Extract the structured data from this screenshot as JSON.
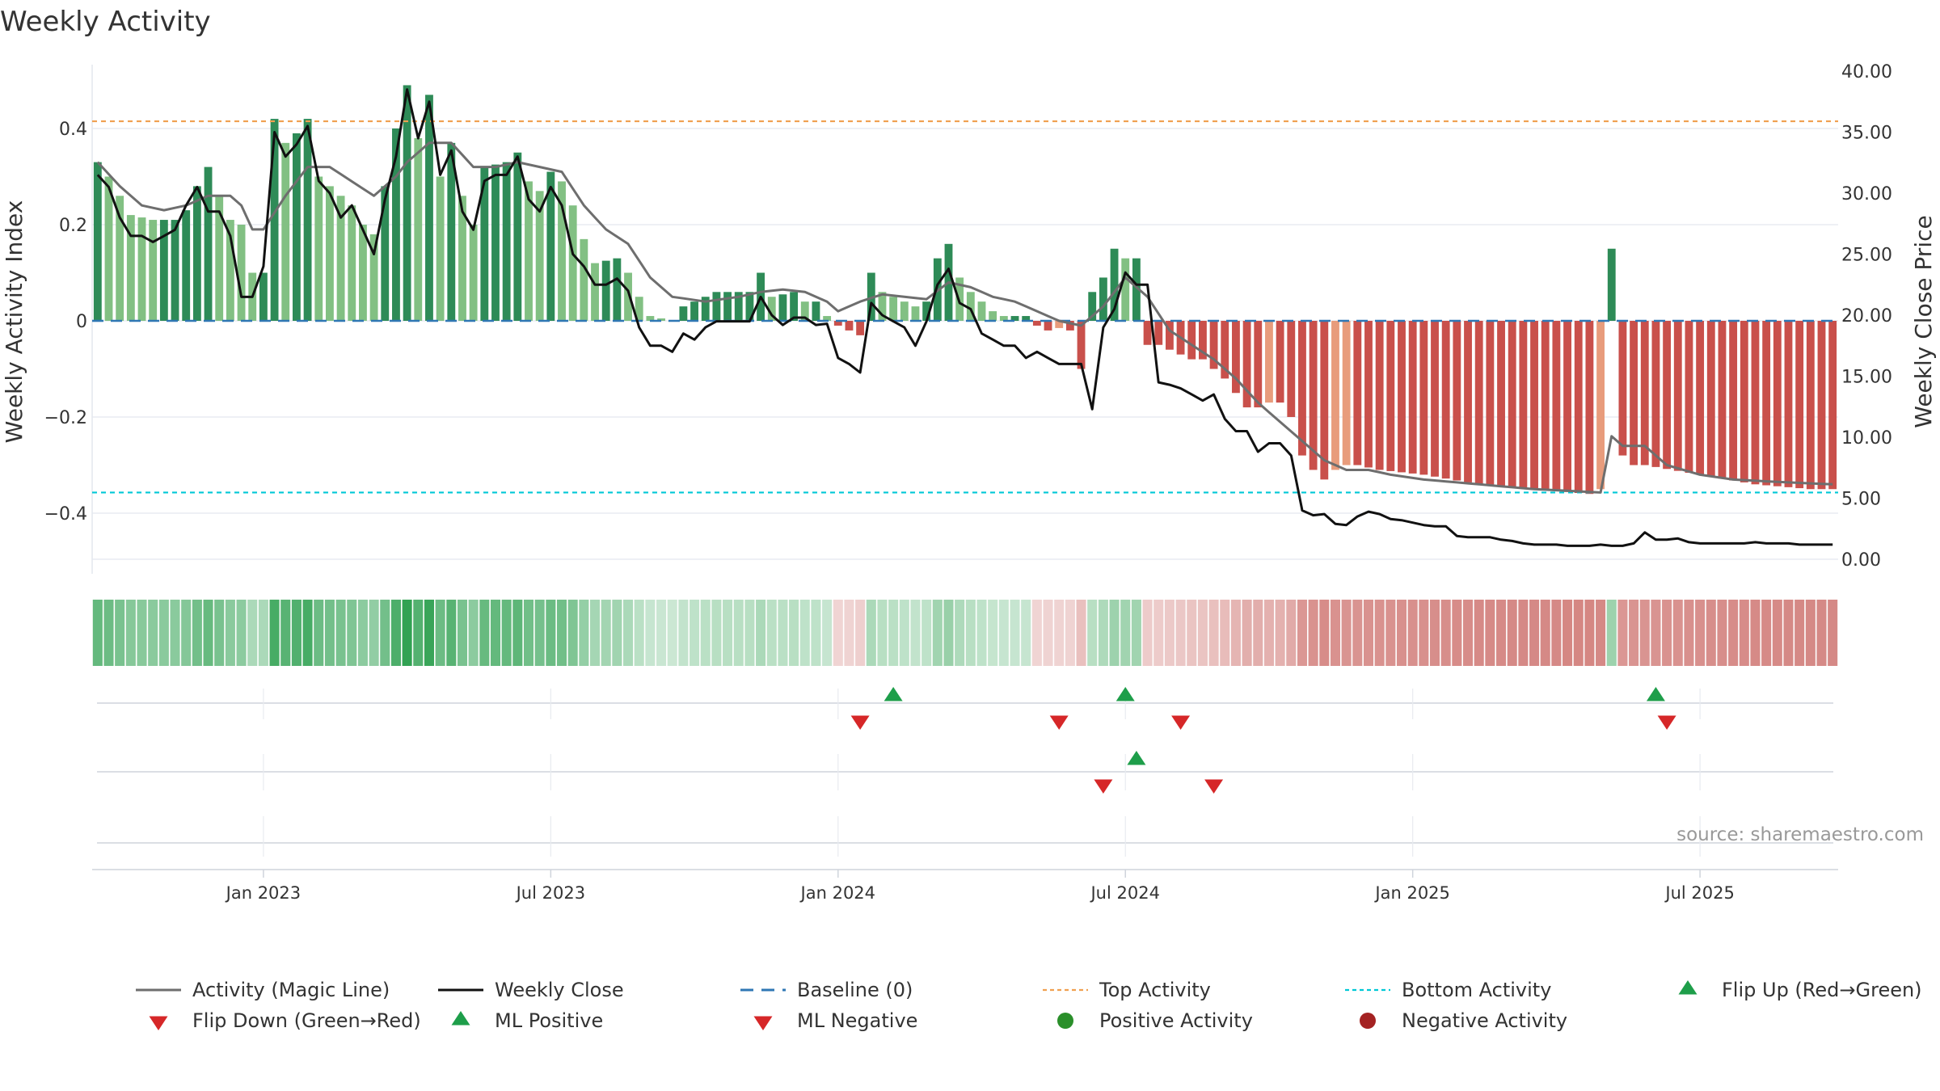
{
  "title": "Weekly Activity",
  "source": "source: sharemaestro.com",
  "colors": {
    "pos_dark": "#2e8b57",
    "pos_light": "#82c083",
    "neg_dark": "#c9504b",
    "neg_light": "#e89c7c",
    "magic_line": "#6e6e6e",
    "close_line": "#111111",
    "baseline": "#2f77b4",
    "top": "#f0a050",
    "bottom": "#00c8d6",
    "flip_up": "#1e9e4a",
    "flip_down": "#d62728",
    "pos_dot": "#2a8f2a",
    "neg_dot": "#a42222"
  },
  "chart_data": {
    "type": "bar+line",
    "title": "Weekly Activity",
    "ylabel_left": "Weekly Activity Index",
    "ylabel_right": "Weekly Close Price",
    "ylim_left": [
      -0.5,
      0.54
    ],
    "ylim_right": [
      0,
      40
    ],
    "yticks_left": [
      {
        "v": 0.4,
        "label": "0.4"
      },
      {
        "v": 0.2,
        "label": "0.2"
      },
      {
        "v": 0,
        "label": "0"
      },
      {
        "v": -0.2,
        "label": "−0.2"
      },
      {
        "v": -0.4,
        "label": "−0.4"
      }
    ],
    "yticks_right": [
      {
        "v": 40,
        "label": "40.00"
      },
      {
        "v": 35,
        "label": "35.00"
      },
      {
        "v": 30,
        "label": "30.00"
      },
      {
        "v": 25,
        "label": "25.00"
      },
      {
        "v": 20,
        "label": "20.00"
      },
      {
        "v": 15,
        "label": "15.00"
      },
      {
        "v": 10,
        "label": "10.00"
      },
      {
        "v": 5,
        "label": "5.00"
      },
      {
        "v": 0,
        "label": "0.00"
      }
    ],
    "x_start": "2022-10-24",
    "week_count": 158,
    "x_ticks": [
      {
        "week": 15,
        "label": "Jan 2023"
      },
      {
        "week": 41,
        "label": "Jul 2023"
      },
      {
        "week": 67,
        "label": "Jan 2024"
      },
      {
        "week": 93,
        "label": "Jul 2024"
      },
      {
        "week": 119,
        "label": "Jan 2025"
      },
      {
        "week": 145,
        "label": "Jul 2025"
      }
    ],
    "top_activity": 0.415,
    "bottom_activity": -0.357,
    "baseline": 0,
    "activity_anchors": [
      [
        0,
        0.33
      ],
      [
        1,
        0.3
      ],
      [
        2,
        0.26
      ],
      [
        3,
        0.22
      ],
      [
        5,
        0.21
      ],
      [
        7,
        0.21
      ],
      [
        8,
        0.23
      ],
      [
        9,
        0.28
      ],
      [
        10,
        0.32
      ],
      [
        11,
        0.26
      ],
      [
        12,
        0.21
      ],
      [
        13,
        0.2
      ],
      [
        14,
        0.1
      ],
      [
        15,
        0.1
      ],
      [
        16,
        0.42
      ],
      [
        17,
        0.37
      ],
      [
        18,
        0.39
      ],
      [
        19,
        0.42
      ],
      [
        20,
        0.3
      ],
      [
        21,
        0.28
      ],
      [
        22,
        0.26
      ],
      [
        23,
        0.24
      ],
      [
        24,
        0.2
      ],
      [
        25,
        0.18
      ],
      [
        26,
        0.28
      ],
      [
        27,
        0.4
      ],
      [
        28,
        0.49
      ],
      [
        29,
        0.38
      ],
      [
        30,
        0.47
      ],
      [
        31,
        0.3
      ],
      [
        32,
        0.37
      ],
      [
        33,
        0.26
      ],
      [
        34,
        0.2
      ],
      [
        35,
        0.32
      ],
      [
        37,
        0.33
      ],
      [
        38,
        0.35
      ],
      [
        39,
        0.29
      ],
      [
        40,
        0.27
      ],
      [
        41,
        0.31
      ],
      [
        42,
        0.29
      ],
      [
        43,
        0.24
      ],
      [
        44,
        0.17
      ],
      [
        45,
        0.12
      ],
      [
        47,
        0.13
      ],
      [
        48,
        0.1
      ],
      [
        49,
        0.05
      ],
      [
        50,
        0.01
      ],
      [
        52,
        0.0
      ],
      [
        53,
        0.03
      ],
      [
        55,
        0.05
      ],
      [
        56,
        0.06
      ],
      [
        59,
        0.06
      ],
      [
        60,
        0.1
      ],
      [
        61,
        0.05
      ],
      [
        63,
        0.06
      ],
      [
        64,
        0.04
      ],
      [
        65,
        0.04
      ],
      [
        66,
        0.01
      ],
      [
        67,
        -0.01
      ],
      [
        68,
        -0.02
      ],
      [
        69,
        -0.03
      ],
      [
        70,
        0.1
      ],
      [
        71,
        0.06
      ],
      [
        72,
        0.05
      ],
      [
        73,
        0.04
      ],
      [
        74,
        0.03
      ],
      [
        75,
        0.04
      ],
      [
        76,
        0.13
      ],
      [
        77,
        0.16
      ],
      [
        78,
        0.09
      ],
      [
        79,
        0.06
      ],
      [
        80,
        0.04
      ],
      [
        81,
        0.02
      ],
      [
        82,
        0.01
      ],
      [
        84,
        0.01
      ],
      [
        85,
        -0.01
      ],
      [
        86,
        -0.02
      ],
      [
        87,
        -0.015
      ],
      [
        88,
        -0.02
      ],
      [
        89,
        -0.1
      ],
      [
        90,
        0.06
      ],
      [
        91,
        0.09
      ],
      [
        92,
        0.15
      ],
      [
        93,
        0.13
      ],
      [
        94,
        0.13
      ],
      [
        95,
        -0.05
      ],
      [
        96,
        -0.05
      ],
      [
        97,
        -0.06
      ],
      [
        98,
        -0.07
      ],
      [
        99,
        -0.08
      ],
      [
        100,
        -0.08
      ],
      [
        101,
        -0.1
      ],
      [
        102,
        -0.12
      ],
      [
        103,
        -0.15
      ],
      [
        104,
        -0.18
      ],
      [
        105,
        -0.18
      ],
      [
        106,
        -0.17
      ],
      [
        107,
        -0.17
      ],
      [
        108,
        -0.2
      ],
      [
        109,
        -0.28
      ],
      [
        110,
        -0.31
      ],
      [
        111,
        -0.33
      ],
      [
        112,
        -0.31
      ],
      [
        113,
        -0.3
      ],
      [
        114,
        -0.3
      ],
      [
        116,
        -0.31
      ],
      [
        120,
        -0.32
      ],
      [
        125,
        -0.34
      ],
      [
        130,
        -0.35
      ],
      [
        135,
        -0.36
      ],
      [
        136,
        -0.35
      ],
      [
        137,
        0.15
      ],
      [
        138,
        -0.28
      ],
      [
        139,
        -0.3
      ],
      [
        140,
        -0.3
      ],
      [
        145,
        -0.32
      ],
      [
        150,
        -0.34
      ],
      [
        155,
        -0.35
      ],
      [
        157,
        -0.35
      ]
    ],
    "magic_anchors": [
      [
        0,
        0.33
      ],
      [
        2,
        0.28
      ],
      [
        4,
        0.24
      ],
      [
        6,
        0.23
      ],
      [
        8,
        0.24
      ],
      [
        10,
        0.26
      ],
      [
        12,
        0.26
      ],
      [
        13,
        0.24
      ],
      [
        14,
        0.19
      ],
      [
        15,
        0.19
      ],
      [
        17,
        0.26
      ],
      [
        19,
        0.32
      ],
      [
        21,
        0.32
      ],
      [
        23,
        0.29
      ],
      [
        25,
        0.26
      ],
      [
        27,
        0.3
      ],
      [
        28,
        0.33
      ],
      [
        30,
        0.37
      ],
      [
        32,
        0.37
      ],
      [
        34,
        0.32
      ],
      [
        36,
        0.32
      ],
      [
        38,
        0.33
      ],
      [
        40,
        0.32
      ],
      [
        42,
        0.31
      ],
      [
        44,
        0.24
      ],
      [
        46,
        0.19
      ],
      [
        48,
        0.16
      ],
      [
        50,
        0.09
      ],
      [
        52,
        0.05
      ],
      [
        55,
        0.04
      ],
      [
        58,
        0.05
      ],
      [
        60,
        0.06
      ],
      [
        62,
        0.065
      ],
      [
        64,
        0.06
      ],
      [
        66,
        0.04
      ],
      [
        67,
        0.02
      ],
      [
        69,
        0.04
      ],
      [
        71,
        0.055
      ],
      [
        73,
        0.05
      ],
      [
        75,
        0.045
      ],
      [
        77,
        0.08
      ],
      [
        79,
        0.07
      ],
      [
        81,
        0.05
      ],
      [
        83,
        0.04
      ],
      [
        85,
        0.02
      ],
      [
        87,
        0.0
      ],
      [
        89,
        -0.01
      ],
      [
        91,
        0.03
      ],
      [
        93,
        0.09
      ],
      [
        95,
        0.05
      ],
      [
        97,
        -0.02
      ],
      [
        99,
        -0.05
      ],
      [
        101,
        -0.08
      ],
      [
        103,
        -0.12
      ],
      [
        105,
        -0.17
      ],
      [
        107,
        -0.21
      ],
      [
        109,
        -0.25
      ],
      [
        111,
        -0.29
      ],
      [
        113,
        -0.31
      ],
      [
        115,
        -0.31
      ],
      [
        117,
        -0.32
      ],
      [
        120,
        -0.33
      ],
      [
        125,
        -0.34
      ],
      [
        130,
        -0.35
      ],
      [
        136,
        -0.357
      ],
      [
        137,
        -0.24
      ],
      [
        138,
        -0.26
      ],
      [
        140,
        -0.26
      ],
      [
        142,
        -0.3
      ],
      [
        145,
        -0.32
      ],
      [
        148,
        -0.33
      ],
      [
        152,
        -0.335
      ],
      [
        157,
        -0.34
      ]
    ],
    "close_anchors": [
      [
        0,
        31.5
      ],
      [
        1,
        30.5
      ],
      [
        2,
        28.0
      ],
      [
        3,
        26.5
      ],
      [
        4,
        26.5
      ],
      [
        5,
        26.0
      ],
      [
        6,
        26.5
      ],
      [
        7,
        27.0
      ],
      [
        8,
        29.0
      ],
      [
        9,
        30.5
      ],
      [
        10,
        28.5
      ],
      [
        11,
        28.5
      ],
      [
        12,
        26.5
      ],
      [
        13,
        21.5
      ],
      [
        14,
        21.5
      ],
      [
        15,
        24.0
      ],
      [
        16,
        35.0
      ],
      [
        17,
        33.0
      ],
      [
        18,
        34.0
      ],
      [
        19,
        35.5
      ],
      [
        20,
        31.0
      ],
      [
        21,
        30.0
      ],
      [
        22,
        28.0
      ],
      [
        23,
        29.0
      ],
      [
        24,
        27.0
      ],
      [
        25,
        25.0
      ],
      [
        26,
        29.5
      ],
      [
        27,
        33.0
      ],
      [
        28,
        38.5
      ],
      [
        29,
        34.5
      ],
      [
        30,
        37.5
      ],
      [
        31,
        31.5
      ],
      [
        32,
        33.5
      ],
      [
        33,
        28.5
      ],
      [
        34,
        27.0
      ],
      [
        35,
        31.0
      ],
      [
        36,
        31.5
      ],
      [
        37,
        31.5
      ],
      [
        38,
        33.0
      ],
      [
        39,
        29.5
      ],
      [
        40,
        28.5
      ],
      [
        41,
        30.5
      ],
      [
        42,
        29.0
      ],
      [
        43,
        25.0
      ],
      [
        44,
        24.0
      ],
      [
        45,
        22.5
      ],
      [
        46,
        22.5
      ],
      [
        47,
        23.0
      ],
      [
        48,
        22.0
      ],
      [
        49,
        19.0
      ],
      [
        50,
        17.5
      ],
      [
        51,
        17.5
      ],
      [
        52,
        17.0
      ],
      [
        53,
        18.5
      ],
      [
        54,
        18.0
      ],
      [
        55,
        19.0
      ],
      [
        56,
        19.5
      ],
      [
        57,
        19.5
      ],
      [
        58,
        19.5
      ],
      [
        59,
        19.5
      ],
      [
        60,
        21.5
      ],
      [
        61,
        20.0
      ],
      [
        62,
        19.2
      ],
      [
        63,
        19.8
      ],
      [
        64,
        19.8
      ],
      [
        65,
        19.2
      ],
      [
        66,
        19.3
      ],
      [
        67,
        16.5
      ],
      [
        68,
        16.0
      ],
      [
        69,
        15.3
      ],
      [
        70,
        21.0
      ],
      [
        71,
        20.0
      ],
      [
        72,
        19.5
      ],
      [
        73,
        19.0
      ],
      [
        74,
        17.5
      ],
      [
        75,
        19.5
      ],
      [
        76,
        22.5
      ],
      [
        77,
        23.8
      ],
      [
        78,
        21.0
      ],
      [
        79,
        20.5
      ],
      [
        80,
        18.5
      ],
      [
        81,
        18.0
      ],
      [
        82,
        17.5
      ],
      [
        83,
        17.5
      ],
      [
        84,
        16.5
      ],
      [
        85,
        17.0
      ],
      [
        86,
        16.5
      ],
      [
        87,
        16.0
      ],
      [
        88,
        16.0
      ],
      [
        89,
        16.0
      ],
      [
        90,
        12.3
      ],
      [
        91,
        19.0
      ],
      [
        92,
        20.5
      ],
      [
        93,
        23.5
      ],
      [
        94,
        22.5
      ],
      [
        95,
        22.5
      ],
      [
        96,
        14.5
      ],
      [
        97,
        14.3
      ],
      [
        98,
        14.0
      ],
      [
        99,
        13.5
      ],
      [
        100,
        13.0
      ],
      [
        101,
        13.5
      ],
      [
        102,
        11.5
      ],
      [
        103,
        10.5
      ],
      [
        104,
        10.5
      ],
      [
        105,
        8.8
      ],
      [
        106,
        9.5
      ],
      [
        107,
        9.5
      ],
      [
        108,
        8.5
      ],
      [
        109,
        4.0
      ],
      [
        110,
        3.6
      ],
      [
        111,
        3.7
      ],
      [
        112,
        2.9
      ],
      [
        113,
        2.8
      ],
      [
        114,
        3.5
      ],
      [
        115,
        3.9
      ],
      [
        116,
        3.7
      ],
      [
        117,
        3.3
      ],
      [
        118,
        3.2
      ],
      [
        119,
        3.0
      ],
      [
        120,
        2.8
      ],
      [
        121,
        2.7
      ],
      [
        122,
        2.7
      ],
      [
        123,
        1.9
      ],
      [
        124,
        1.8
      ],
      [
        125,
        1.8
      ],
      [
        126,
        1.8
      ],
      [
        127,
        1.6
      ],
      [
        128,
        1.5
      ],
      [
        129,
        1.3
      ],
      [
        130,
        1.2
      ],
      [
        131,
        1.2
      ],
      [
        132,
        1.2
      ],
      [
        133,
        1.1
      ],
      [
        134,
        1.1
      ],
      [
        135,
        1.1
      ],
      [
        136,
        1.2
      ],
      [
        137,
        1.1
      ],
      [
        138,
        1.1
      ],
      [
        139,
        1.3
      ],
      [
        140,
        2.2
      ],
      [
        141,
        1.6
      ],
      [
        142,
        1.6
      ],
      [
        143,
        1.7
      ],
      [
        144,
        1.4
      ],
      [
        145,
        1.3
      ],
      [
        146,
        1.3
      ],
      [
        147,
        1.3
      ],
      [
        148,
        1.3
      ],
      [
        149,
        1.3
      ],
      [
        150,
        1.4
      ],
      [
        151,
        1.3
      ],
      [
        152,
        1.3
      ],
      [
        153,
        1.3
      ],
      [
        154,
        1.2
      ],
      [
        155,
        1.2
      ],
      [
        156,
        1.2
      ],
      [
        157,
        1.2
      ]
    ],
    "flip_up_weeks": [
      72,
      93,
      141
    ],
    "flip_down_weeks": [
      69,
      87,
      98,
      142
    ],
    "ml_positive_weeks": [
      94
    ],
    "ml_negative_weeks": [
      91,
      101
    ],
    "positive_activity_weeks": [],
    "negative_activity_weeks": []
  },
  "legend": [
    {
      "key": "activity_magic_line",
      "label": "Activity (Magic Line)"
    },
    {
      "key": "weekly_close",
      "label": "Weekly Close"
    },
    {
      "key": "baseline",
      "label": "Baseline (0)"
    },
    {
      "key": "top_activity",
      "label": "Top Activity"
    },
    {
      "key": "bottom_activity",
      "label": "Bottom Activity"
    },
    {
      "key": "flip_up",
      "label": "Flip Up (Red→Green)"
    },
    {
      "key": "flip_down",
      "label": "Flip Down (Green→Red)"
    },
    {
      "key": "ml_positive",
      "label": "ML Positive"
    },
    {
      "key": "ml_negative",
      "label": "ML Negative"
    },
    {
      "key": "positive_activity",
      "label": "Positive Activity"
    },
    {
      "key": "negative_activity",
      "label": "Negative Activity"
    }
  ]
}
